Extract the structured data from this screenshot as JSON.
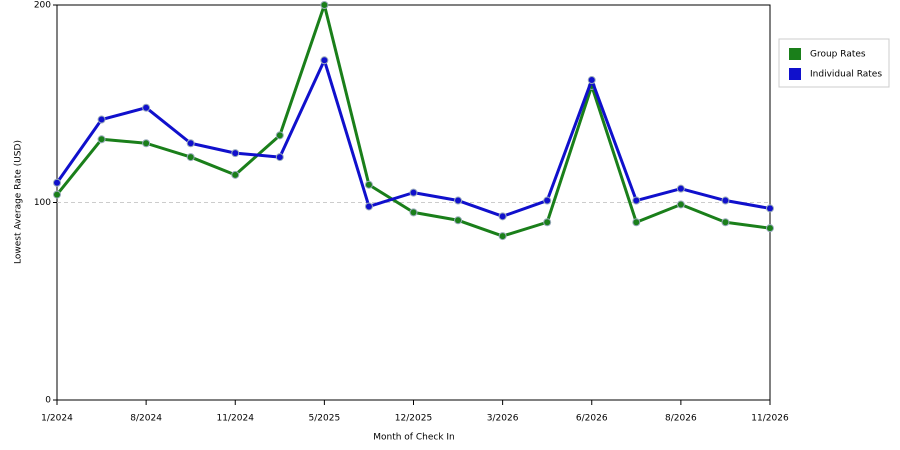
{
  "chart_data": {
    "type": "line",
    "x_label": "Month of Check In",
    "y_label": "Lowest Average Rate (USD)",
    "categories": [
      "1/2024",
      null,
      "8/2024",
      null,
      "11/2024",
      null,
      "5/2025",
      null,
      "12/2025",
      null,
      "3/2026",
      null,
      "6/2026",
      null,
      "8/2026",
      null,
      "11/2026"
    ],
    "series": [
      {
        "name": "Group Rates",
        "color": "#1a7f1a",
        "values": [
          104,
          132,
          130,
          123,
          114,
          134,
          200,
          109,
          95,
          91,
          83,
          90,
          159,
          90,
          99,
          90,
          87
        ]
      },
      {
        "name": "Individual Rates",
        "color": "#1010cc",
        "values": [
          110,
          142,
          148,
          130,
          125,
          123,
          172,
          98,
          105,
          101,
          93,
          101,
          162,
          101,
          107,
          101,
          97
        ]
      }
    ],
    "ylim": [
      0,
      200
    ],
    "yticks": [
      0,
      100,
      200
    ],
    "grid": true,
    "legend": "right"
  }
}
